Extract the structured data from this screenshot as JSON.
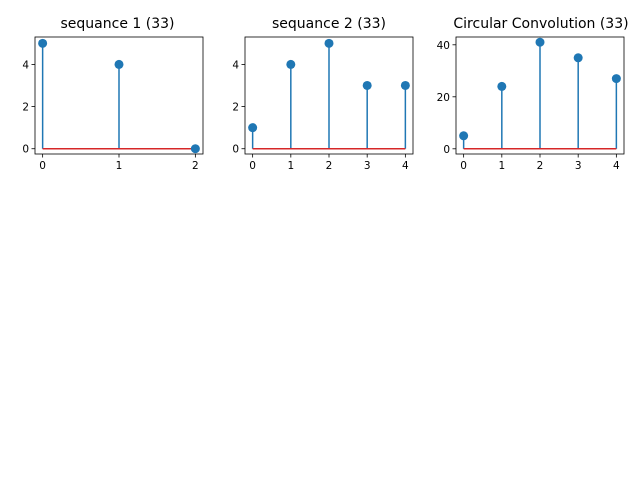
{
  "colors": {
    "stem": "#1f77b4",
    "baseline": "#d62728",
    "axes": "#000000",
    "background": "#ffffff"
  },
  "chart_data": [
    {
      "type": "stem",
      "title": "sequance 1 (33)",
      "x": [
        0,
        1,
        2
      ],
      "values": [
        5,
        4,
        0
      ],
      "xlim": [
        -0.1,
        2.1
      ],
      "ylim": [
        -0.25,
        5.3
      ],
      "xticks": [
        0,
        1,
        2
      ],
      "yticks": [
        0,
        2,
        4
      ],
      "grid": false
    },
    {
      "type": "stem",
      "title": "sequance 2 (33)",
      "x": [
        0,
        1,
        2,
        3,
        4
      ],
      "values": [
        1,
        4,
        5,
        3,
        3
      ],
      "xlim": [
        -0.2,
        4.2
      ],
      "ylim": [
        -0.25,
        5.3
      ],
      "xticks": [
        0,
        1,
        2,
        3,
        4
      ],
      "yticks": [
        0,
        2,
        4
      ],
      "grid": false
    },
    {
      "type": "stem",
      "title": "Circular Convolution (33)",
      "x": [
        0,
        1,
        2,
        3,
        4
      ],
      "values": [
        5,
        24,
        41,
        35,
        27
      ],
      "xlim": [
        -0.2,
        4.2
      ],
      "ylim": [
        -2.0,
        43.0
      ],
      "xticks": [
        0,
        1,
        2,
        3,
        4
      ],
      "yticks": [
        0,
        20,
        40
      ],
      "grid": false
    }
  ]
}
